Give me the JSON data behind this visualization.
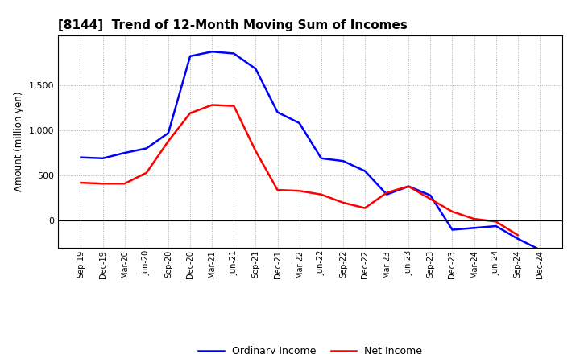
{
  "title": "[8144]  Trend of 12-Month Moving Sum of Incomes",
  "ylabel": "Amount (million yen)",
  "x_labels": [
    "Sep-19",
    "Dec-19",
    "Mar-20",
    "Jun-20",
    "Sep-20",
    "Dec-20",
    "Mar-21",
    "Jun-21",
    "Sep-21",
    "Dec-21",
    "Mar-22",
    "Jun-22",
    "Sep-22",
    "Dec-22",
    "Mar-23",
    "Jun-23",
    "Sep-23",
    "Dec-23",
    "Mar-24",
    "Jun-24",
    "Sep-24",
    "Dec-24"
  ],
  "ordinary_income": [
    700,
    690,
    750,
    800,
    970,
    1820,
    1870,
    1850,
    1680,
    1200,
    1080,
    690,
    660,
    550,
    290,
    380,
    280,
    -100,
    -80,
    -60,
    -200,
    -320
  ],
  "net_income": [
    420,
    410,
    410,
    530,
    880,
    1190,
    1280,
    1270,
    770,
    340,
    330,
    290,
    200,
    140,
    310,
    380,
    240,
    100,
    20,
    -10,
    -160,
    null
  ],
  "ordinary_income_color": "#0000FF",
  "net_income_color": "#FF0000",
  "ylim_min": -300,
  "ylim_max": 2050,
  "yticks": [
    0,
    500,
    1000,
    1500
  ],
  "background_color": "#ffffff",
  "grid_color": "#aaaaaa",
  "legend_labels": [
    "Ordinary Income",
    "Net Income"
  ]
}
